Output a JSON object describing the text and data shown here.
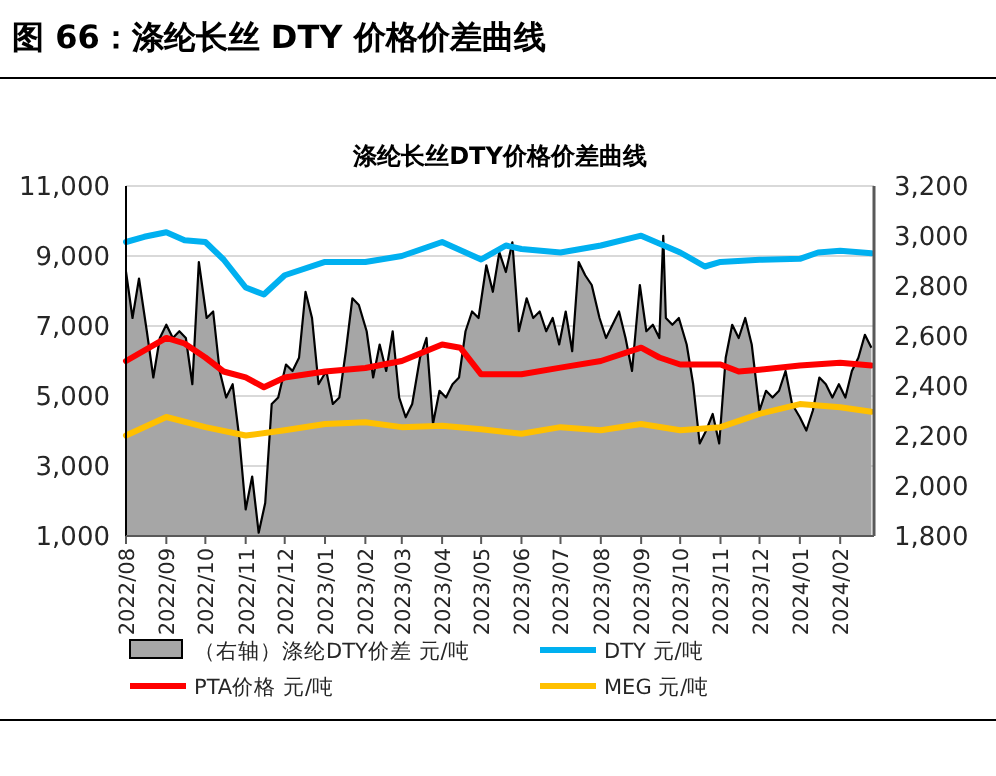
{
  "chart_data": {
    "type": "line",
    "title": "图 66：涤纶长丝 DTY 价格价差曲线",
    "subtitle": "涤纶长丝DTY价格价差曲线",
    "ylim": [
      1000,
      11000
    ],
    "yticks": [
      {
        "value": 1000,
        "label": "1,000"
      },
      {
        "value": 3000,
        "label": "3,000"
      },
      {
        "value": 5000,
        "label": "5,000"
      },
      {
        "value": 7000,
        "label": "7,000"
      },
      {
        "value": 9000,
        "label": "9,000"
      },
      {
        "value": 11000,
        "label": "11,000"
      }
    ],
    "y2lim": [
      1800,
      3200
    ],
    "y2ticks": [
      {
        "value": 1800,
        "label": "1,800"
      },
      {
        "value": 2000,
        "label": "2,000"
      },
      {
        "value": 2200,
        "label": "2,200"
      },
      {
        "value": 2400,
        "label": "2,400"
      },
      {
        "value": 2600,
        "label": "2,600"
      },
      {
        "value": 2800,
        "label": "2,800"
      },
      {
        "value": 3000,
        "label": "3,000"
      },
      {
        "value": 3200,
        "label": "3,200"
      }
    ],
    "xlim": [
      "2022-08-01",
      "2024-02-27"
    ],
    "xticks": [
      {
        "value": "2022-08",
        "label": "2022/08"
      },
      {
        "value": "2022-09",
        "label": "2022/09"
      },
      {
        "value": "2022-10",
        "label": "2022/10"
      },
      {
        "value": "2022-11",
        "label": "2022/11"
      },
      {
        "value": "2022-12",
        "label": "2022/12"
      },
      {
        "value": "2023-01",
        "label": "2023/01"
      },
      {
        "value": "2023-02",
        "label": "2023/02"
      },
      {
        "value": "2023-03",
        "label": "2023/03"
      },
      {
        "value": "2023-04",
        "label": "2023/04"
      },
      {
        "value": "2023-05",
        "label": "2023/05"
      },
      {
        "value": "2023-06",
        "label": "2023/06"
      },
      {
        "value": "2023-07",
        "label": "2023/07"
      },
      {
        "value": "2023-08",
        "label": "2023/08"
      },
      {
        "value": "2023-09",
        "label": "2023/09"
      },
      {
        "value": "2023-10",
        "label": "2023/10"
      },
      {
        "value": "2023-11",
        "label": "2023/11"
      },
      {
        "value": "2023-12",
        "label": "2023/12"
      },
      {
        "value": "2024-01",
        "label": "2024/01"
      },
      {
        "value": "2024-02",
        "label": "2024/02"
      }
    ],
    "grid": "y",
    "legend": "bottom",
    "marker": "none",
    "line_style": "solid",
    "series": [
      {
        "name": "（右轴）涤纶DTY价差 元/吨",
        "type": "area",
        "axis": "y2",
        "color": "#a6a6a6",
        "x": [
          "2022-08-01",
          "2022-08-06",
          "2022-08-11",
          "2022-08-17",
          "2022-08-22",
          "2022-08-27",
          "2022-09-01",
          "2022-09-06",
          "2022-09-11",
          "2022-09-16",
          "2022-09-21",
          "2022-09-26",
          "2022-10-02",
          "2022-10-07",
          "2022-10-12",
          "2022-10-17",
          "2022-10-22",
          "2022-10-27",
          "2022-11-01",
          "2022-11-06",
          "2022-11-11",
          "2022-11-16",
          "2022-11-21",
          "2022-11-26",
          "2022-12-02",
          "2022-12-07",
          "2022-12-12",
          "2022-12-17",
          "2022-12-22",
          "2022-12-27",
          "2023-01-02",
          "2023-01-07",
          "2023-01-12",
          "2023-01-17",
          "2023-01-22",
          "2023-01-27",
          "2023-02-02",
          "2023-02-07",
          "2023-02-12",
          "2023-02-17",
          "2023-02-22",
          "2023-02-27",
          "2023-03-04",
          "2023-03-09",
          "2023-03-15",
          "2023-03-20",
          "2023-03-25",
          "2023-03-30",
          "2023-04-04",
          "2023-04-09",
          "2023-04-14",
          "2023-04-19",
          "2023-04-24",
          "2023-04-29",
          "2023-05-05",
          "2023-05-10",
          "2023-05-15",
          "2023-05-20",
          "2023-05-25",
          "2023-05-30",
          "2023-06-05",
          "2023-06-10",
          "2023-06-15",
          "2023-06-20",
          "2023-06-25",
          "2023-06-30",
          "2023-07-05",
          "2023-07-10",
          "2023-07-15",
          "2023-07-20",
          "2023-07-25",
          "2023-07-31",
          "2023-08-05",
          "2023-08-10",
          "2023-08-15",
          "2023-08-20",
          "2023-08-25",
          "2023-08-31",
          "2023-09-05",
          "2023-09-10",
          "2023-09-15",
          "2023-09-18",
          "2023-09-20",
          "2023-09-25",
          "2023-09-30",
          "2023-10-06",
          "2023-10-11",
          "2023-10-16",
          "2023-10-21",
          "2023-10-26",
          "2023-10-31",
          "2023-11-05",
          "2023-11-10",
          "2023-11-15",
          "2023-11-20",
          "2023-11-25",
          "2023-12-01",
          "2023-12-06",
          "2023-12-11",
          "2023-12-16",
          "2023-12-21",
          "2023-12-26",
          "2024-01-01",
          "2024-01-06",
          "2024-01-11",
          "2024-01-16",
          "2024-01-21",
          "2024-01-26",
          "2024-01-31",
          "2024-02-05",
          "2024-02-10",
          "2024-02-15",
          "2024-02-20",
          "2024-02-25"
        ],
        "values": [
          2857,
          2672,
          2830,
          2619,
          2434,
          2592,
          2645,
          2592,
          2619,
          2592,
          2407,
          2896,
          2672,
          2698,
          2460,
          2354,
          2407,
          2196,
          1906,
          2038,
          1813,
          1932,
          2328,
          2354,
          2486,
          2460,
          2513,
          2777,
          2672,
          2407,
          2460,
          2328,
          2354,
          2539,
          2751,
          2724,
          2619,
          2434,
          2566,
          2460,
          2619,
          2354,
          2275,
          2328,
          2513,
          2592,
          2249,
          2381,
          2354,
          2407,
          2434,
          2619,
          2698,
          2672,
          2883,
          2777,
          2935,
          2856,
          2975,
          2619,
          2751,
          2672,
          2698,
          2619,
          2672,
          2566,
          2698,
          2539,
          2896,
          2843,
          2804,
          2672,
          2592,
          2645,
          2698,
          2592,
          2460,
          2804,
          2619,
          2645,
          2592,
          3001,
          2672,
          2645,
          2672,
          2566,
          2407,
          2170,
          2222,
          2288,
          2170,
          2513,
          2645,
          2592,
          2672,
          2566,
          2302,
          2381,
          2354,
          2381,
          2460,
          2328,
          2275,
          2222,
          2302,
          2434,
          2407,
          2354,
          2407,
          2354,
          2460,
          2513,
          2605,
          2553
        ]
      },
      {
        "name": "DTY 元/吨",
        "color": "#00b0f0",
        "x": [
          "2022-08-01",
          "2022-08-15",
          "2022-09-01",
          "2022-09-15",
          "2022-10-01",
          "2022-10-15",
          "2022-11-01",
          "2022-11-15",
          "2022-12-01",
          "2023-01-01",
          "2023-02-01",
          "2023-03-01",
          "2023-04-01",
          "2023-05-01",
          "2023-05-20",
          "2023-06-01",
          "2023-07-01",
          "2023-08-01",
          "2023-09-01",
          "2023-10-01",
          "2023-10-20",
          "2023-11-01",
          "2023-12-01",
          "2024-01-01",
          "2024-01-15",
          "2024-02-01",
          "2024-02-25"
        ],
        "values": [
          9400,
          9550,
          9680,
          9450,
          9400,
          8900,
          8100,
          7900,
          8450,
          8830,
          8830,
          9000,
          9400,
          8900,
          9300,
          9200,
          9100,
          9300,
          9580,
          9100,
          8700,
          8830,
          8890,
          8920,
          9100,
          9150,
          9080
        ]
      },
      {
        "name": "PTA价格 元/吨",
        "color": "#ff0000",
        "x": [
          "2022-08-01",
          "2022-09-01",
          "2022-09-15",
          "2022-10-01",
          "2022-10-15",
          "2022-11-01",
          "2022-11-15",
          "2022-12-01",
          "2023-01-01",
          "2023-02-01",
          "2023-03-01",
          "2023-04-01",
          "2023-04-15",
          "2023-05-01",
          "2023-06-01",
          "2023-07-01",
          "2023-08-01",
          "2023-09-01",
          "2023-09-15",
          "2023-10-01",
          "2023-11-01",
          "2023-11-15",
          "2023-12-01",
          "2024-01-01",
          "2024-02-01",
          "2024-02-25"
        ],
        "values": [
          6000,
          6660,
          6500,
          6100,
          5700,
          5530,
          5250,
          5530,
          5700,
          5800,
          6000,
          6470,
          6380,
          5620,
          5620,
          5810,
          6000,
          6380,
          6100,
          5900,
          5900,
          5700,
          5750,
          5870,
          5950,
          5870
        ]
      },
      {
        "name": "MEG 元/吨",
        "color": "#ffc000",
        "x": [
          "2022-08-01",
          "2022-09-01",
          "2022-10-01",
          "2022-11-01",
          "2022-12-01",
          "2023-01-01",
          "2023-02-01",
          "2023-03-01",
          "2023-04-01",
          "2023-05-01",
          "2023-06-01",
          "2023-07-01",
          "2023-08-01",
          "2023-09-01",
          "2023-10-01",
          "2023-11-01",
          "2023-12-01",
          "2024-01-01",
          "2024-02-01",
          "2024-02-25"
        ],
        "values": [
          3870,
          4400,
          4110,
          3870,
          4020,
          4200,
          4250,
          4110,
          4150,
          4050,
          3920,
          4110,
          4020,
          4200,
          4020,
          4110,
          4490,
          4770,
          4680,
          4550
        ]
      }
    ]
  }
}
